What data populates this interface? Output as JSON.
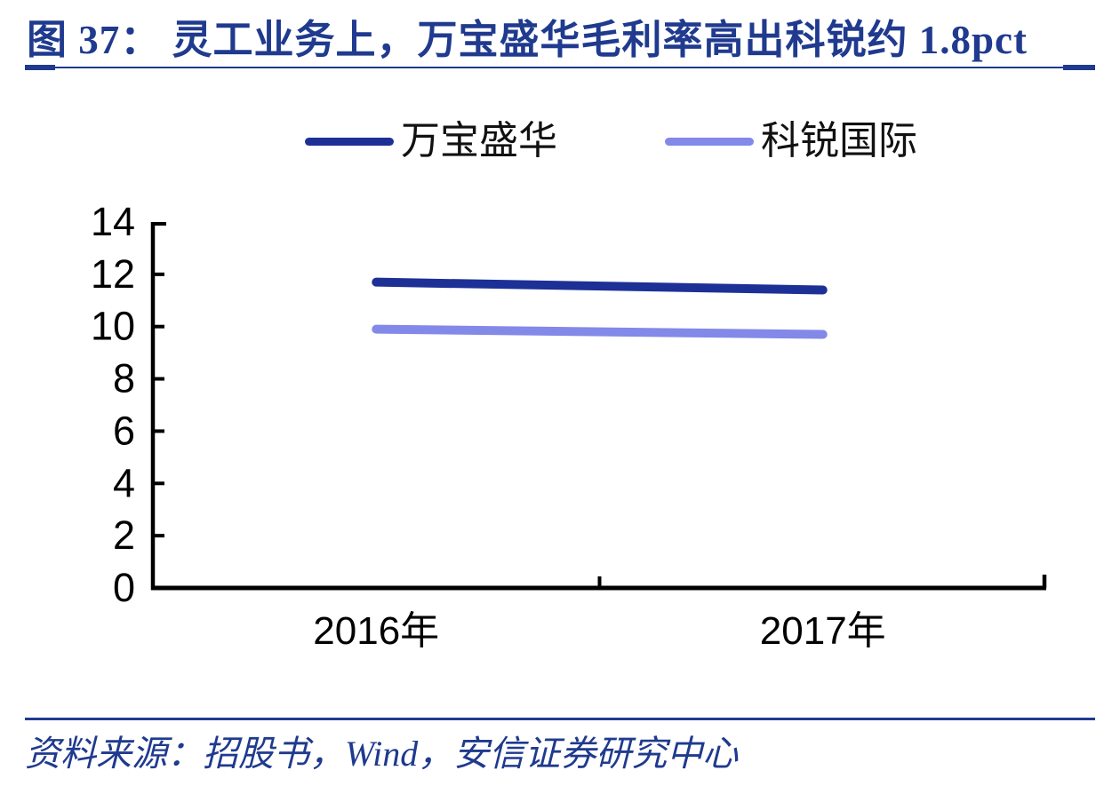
{
  "figure": {
    "title": "图 37：  灵工业务上，万宝盛华毛利率高出科锐约 1.8pct"
  },
  "source": {
    "text": "资料来源：招股书，Wind，安信证券研究中心"
  },
  "colors": {
    "accent_navy": "#1f3a8e",
    "axis_black": "#000000",
    "series_dark": "#1d3096",
    "series_light": "#8289e8"
  },
  "chart_data": {
    "type": "line",
    "title": "图 37：灵工业务上，万宝盛华毛利率高出科锐约 1.8pct",
    "categories": [
      "2016年",
      "2017年"
    ],
    "series": [
      {
        "name": "万宝盛华",
        "color": "#1d3096",
        "values": [
          11.7,
          11.4
        ]
      },
      {
        "name": "科锐国际",
        "color": "#8289e8",
        "values": [
          9.9,
          9.7
        ]
      }
    ],
    "ylim": [
      0,
      14
    ],
    "yticks": [
      0,
      2,
      4,
      6,
      8,
      10,
      12,
      14
    ],
    "xlabel": "",
    "ylabel": "",
    "grid": false,
    "legend_position": "top"
  }
}
